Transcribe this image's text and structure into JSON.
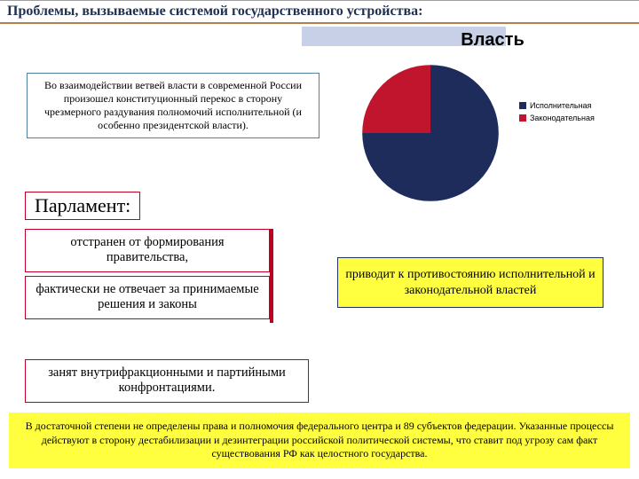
{
  "title": "Проблемы, вызываемые системой государственного устройства:",
  "chart": {
    "type": "pie",
    "title": "Власть",
    "title_fontsize": 20,
    "slices": [
      {
        "label": "Исполнительная",
        "value": 75,
        "color": "#1e2c5c"
      },
      {
        "label": "Законодательная",
        "value": 25,
        "color": "#c0152c"
      }
    ],
    "background_color": "#ffffff",
    "start_angle": -90
  },
  "intro": "Во взаимодействии ветвей власти в современной России произошел конституционный перекос в сторону чрезмерного раздувания полномочий исполнительной (и особенно президентской власти).",
  "section_heading": "Парламент:",
  "parliament_points": [
    "отстранен от формирования правительства,",
    "фактически не отвечает за принимаемые решения и законы"
  ],
  "parliament_wide": "занят внутрифракционными и партийными конфронтациями.",
  "result": "приводит к противостоянию исполнительной и законодательной властей",
  "footer": "В достаточной степени не определены права и полномочия федерального центра и 89 субъектов федерации. Указанные процессы действуют в сторону дестабилизации и дезинтеграции российской политической системы, что ставит под угрозу сам факт существования РФ как целостного государства.",
  "colors": {
    "accent_box": "#ffff40",
    "red_border": "#c00020",
    "blue_border": "#5080a0",
    "navy_border": "#203060"
  }
}
